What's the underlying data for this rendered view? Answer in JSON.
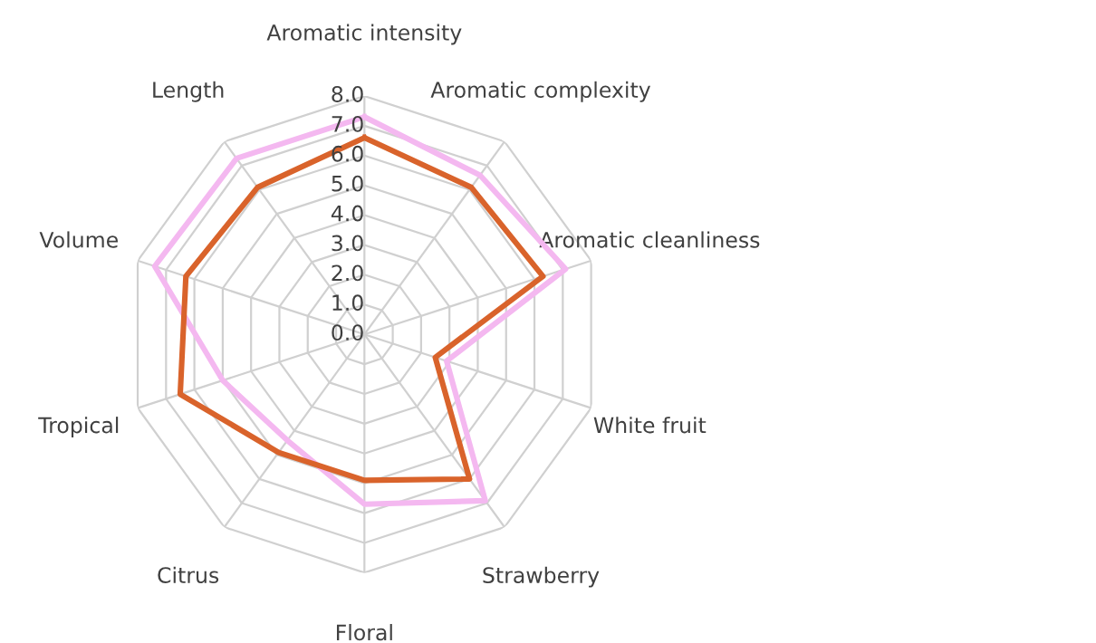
{
  "chart_data": {
    "type": "radar",
    "categories": [
      "Aromatic intensity",
      "Aromatic complexity",
      "Aromatic cleanliness",
      "White fruit",
      "Strawberry",
      "Floral",
      "Citrus",
      "Tropical",
      "Volume",
      "Length"
    ],
    "series": [
      {
        "color": "#f4b8f0",
        "values": [
          7.3,
          6.6,
          7.1,
          2.9,
          6.9,
          5.7,
          4.4,
          5.0,
          7.4,
          7.3
        ]
      },
      {
        "color": "#d9632b",
        "values": [
          6.6,
          6.1,
          6.3,
          2.5,
          6.0,
          4.9,
          4.9,
          6.5,
          6.3,
          6.1
        ]
      }
    ],
    "ylim": [
      0,
      8
    ],
    "yticks": [
      {
        "value": 0,
        "label": "0.0"
      },
      {
        "value": 1,
        "label": "1.0"
      },
      {
        "value": 2,
        "label": "2.0"
      },
      {
        "value": 3,
        "label": "3.0"
      },
      {
        "value": 4,
        "label": "4.0"
      },
      {
        "value": 5,
        "label": "5.0"
      },
      {
        "value": 6,
        "label": "6.0"
      },
      {
        "value": 7,
        "label": "7.0"
      },
      {
        "value": 8,
        "label": "8.0"
      }
    ],
    "grid": true
  }
}
